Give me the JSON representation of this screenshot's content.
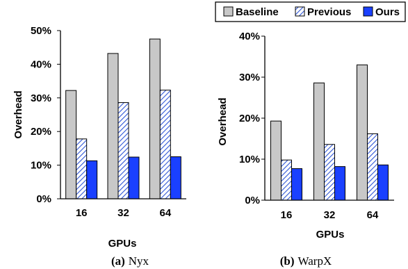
{
  "legend": [
    {
      "name": "Baseline",
      "fill": "#c8c8c8"
    },
    {
      "name": "Previous",
      "fill": "hatch"
    },
    {
      "name": "Ours",
      "fill": "#1a40ff"
    }
  ],
  "colors": {
    "baseline": "#c8c8c8",
    "previous_line": "#2f56d6",
    "ours": "#1a40ff",
    "axis": "#000000",
    "bar_stroke": "#000000"
  },
  "chart_data": [
    {
      "type": "bar",
      "caption_tag": "(a)",
      "caption_name": "Nyx",
      "categories": [
        "16",
        "32",
        "64"
      ],
      "xlabel": "GPUs",
      "ylabel": "Overhead",
      "ylim": [
        0,
        50
      ],
      "yticks": [
        0,
        10,
        20,
        30,
        40,
        50
      ],
      "ytick_labels": [
        "0%",
        "10%",
        "20%",
        "30%",
        "40%",
        "50%"
      ],
      "series": [
        {
          "name": "Baseline",
          "values": [
            32.2,
            43.2,
            47.5
          ]
        },
        {
          "name": "Previous",
          "values": [
            17.8,
            28.6,
            32.3
          ]
        },
        {
          "name": "Ours",
          "values": [
            11.3,
            12.4,
            12.5
          ]
        }
      ]
    },
    {
      "type": "bar",
      "caption_tag": "(b)",
      "caption_name": "WarpX",
      "categories": [
        "16",
        "32",
        "64"
      ],
      "xlabel": "GPUs",
      "ylabel": "Overhead",
      "ylim": [
        0,
        40
      ],
      "yticks": [
        0,
        10,
        20,
        30,
        40
      ],
      "ytick_labels": [
        "0%",
        "10%",
        "20%",
        "30%",
        "40%"
      ],
      "series": [
        {
          "name": "Baseline",
          "values": [
            19.3,
            28.6,
            33.0
          ]
        },
        {
          "name": "Previous",
          "values": [
            9.8,
            13.6,
            16.2
          ]
        },
        {
          "name": "Ours",
          "values": [
            7.7,
            8.2,
            8.6
          ]
        }
      ]
    }
  ]
}
